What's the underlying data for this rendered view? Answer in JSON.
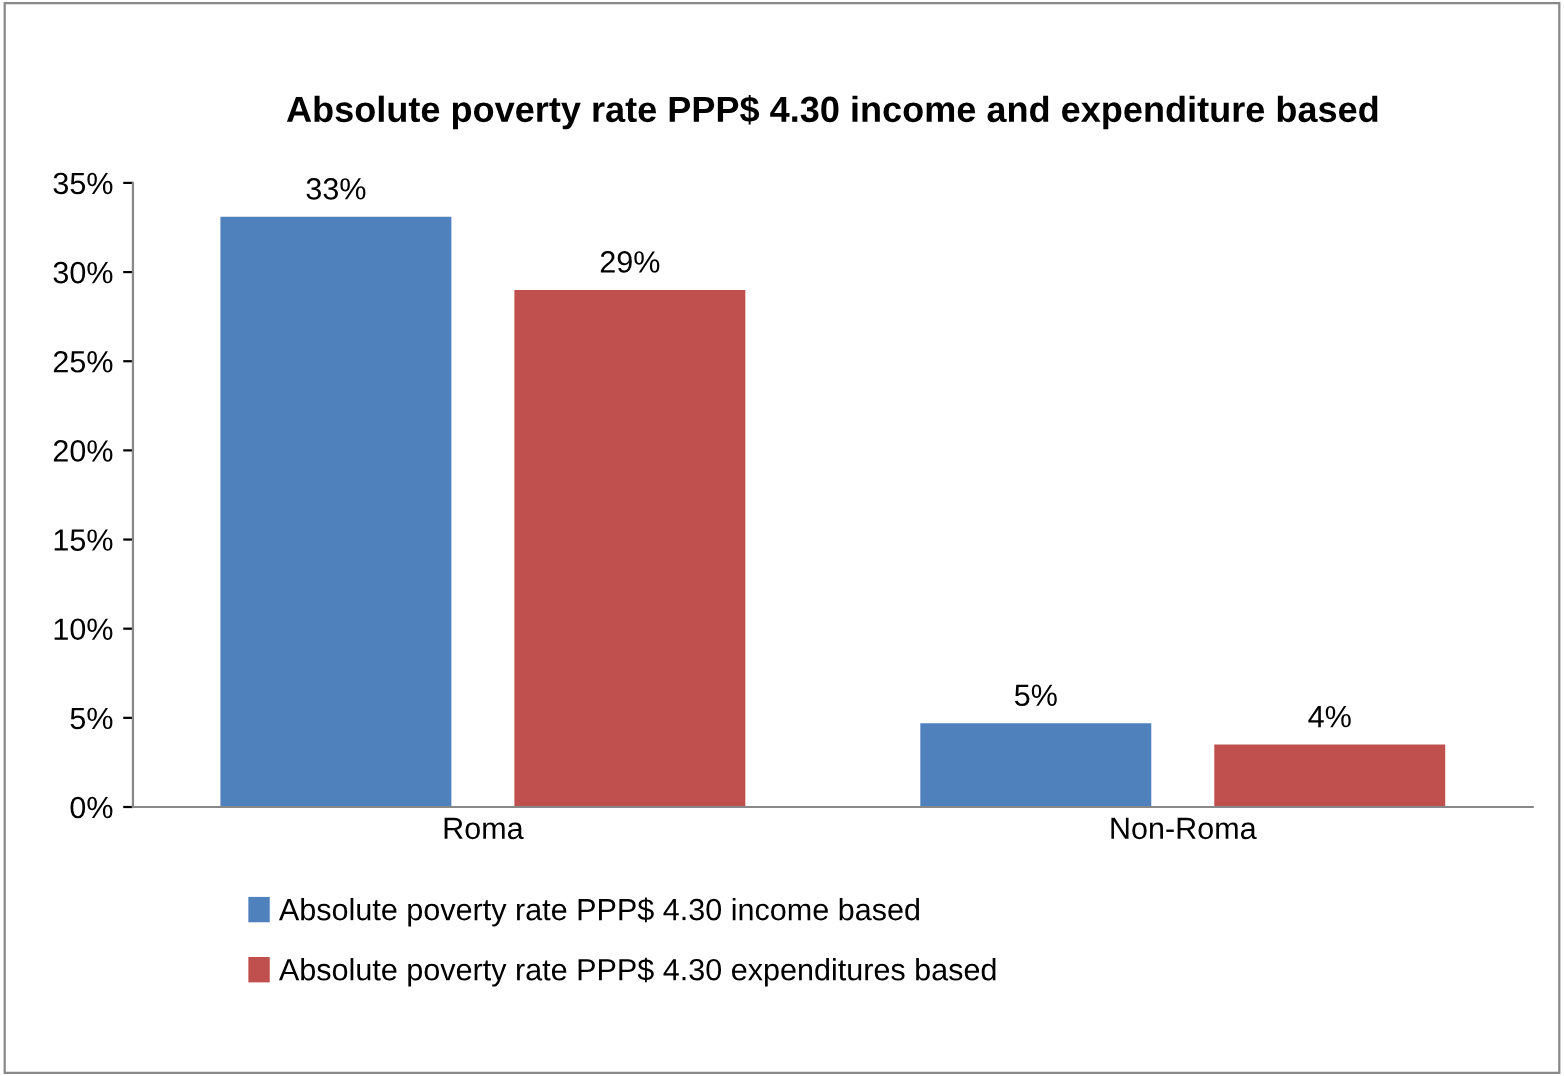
{
  "chart_data": {
    "type": "bar",
    "title": "Absolute poverty rate PPP$ 4.30 income and expenditure based",
    "categories": [
      "Roma",
      "Non-Roma"
    ],
    "series": [
      {
        "name": "Absolute poverty rate PPP$ 4.30 income based",
        "color": "#4f81bd",
        "values": [
          33.1,
          4.7
        ],
        "value_labels": [
          "33%",
          "5%"
        ]
      },
      {
        "name": "Absolute poverty rate PPP$ 4.30 expenditures based",
        "color": "#c0504d",
        "values": [
          29.0,
          3.5
        ],
        "value_labels": [
          "29%",
          "4%"
        ]
      }
    ],
    "ylim": [
      0,
      35
    ],
    "yticks": [
      {
        "value": 0,
        "label": "0%"
      },
      {
        "value": 5,
        "label": "5%"
      },
      {
        "value": 10,
        "label": "10%"
      },
      {
        "value": 15,
        "label": "15%"
      },
      {
        "value": 20,
        "label": "20%"
      },
      {
        "value": 25,
        "label": "25%"
      },
      {
        "value": 30,
        "label": "30%"
      },
      {
        "value": 35,
        "label": "35%"
      }
    ],
    "grid": false,
    "legend": "bottom"
  }
}
